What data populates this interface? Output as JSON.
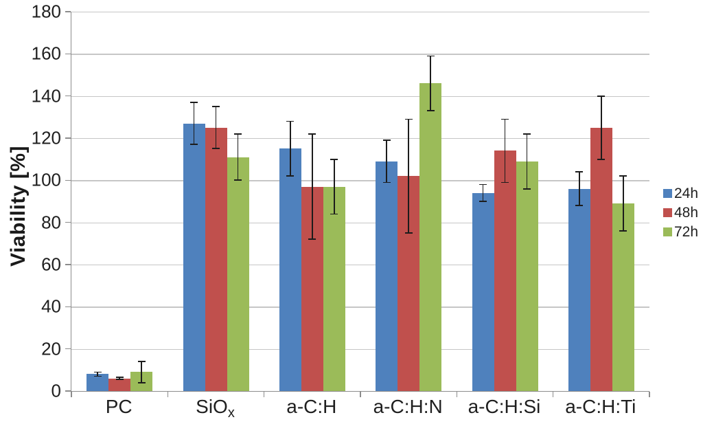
{
  "chart_data": {
    "type": "bar",
    "title": "",
    "xlabel": "",
    "ylabel": "Viability [%]",
    "ylim": [
      0,
      180
    ],
    "ytick_step": 20,
    "grid": true,
    "legend_position": "right",
    "error_bars": true,
    "categories": [
      {
        "text": "PC",
        "sub": ""
      },
      {
        "text": "SiO",
        "sub": "x"
      },
      {
        "text": "a-C:H",
        "sub": ""
      },
      {
        "text": "a-C:H:N",
        "sub": ""
      },
      {
        "text": "a-C:H:Si",
        "sub": ""
      },
      {
        "text": "a-C:H:Ti",
        "sub": ""
      }
    ],
    "series": [
      {
        "name": "24h",
        "color": "#4F81BD",
        "values": [
          8,
          127,
          115,
          109,
          94,
          96
        ],
        "errors": [
          1,
          10,
          13,
          10,
          4,
          8
        ]
      },
      {
        "name": "48h",
        "color": "#C0504D",
        "values": [
          6,
          125,
          97,
          102,
          114,
          125
        ],
        "errors": [
          0.5,
          10,
          25,
          27,
          15,
          15
        ]
      },
      {
        "name": "72h",
        "color": "#9BBB59",
        "values": [
          9,
          111,
          97,
          146,
          109,
          89
        ],
        "errors": [
          5,
          11,
          13,
          13,
          13,
          13
        ]
      }
    ]
  }
}
